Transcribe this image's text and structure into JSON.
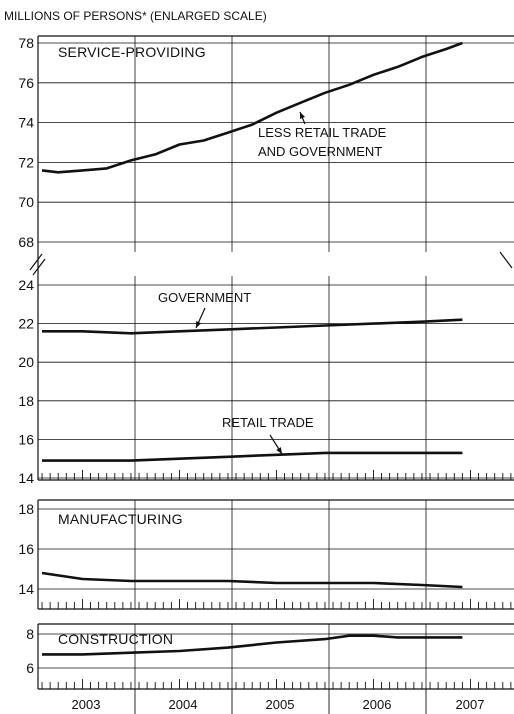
{
  "chart_data": {
    "type": "line",
    "unit_label": "MILLIONS OF PERSONS* (ENLARGED SCALE)",
    "x_years": [
      "2003",
      "2004",
      "2005",
      "2006",
      "2007"
    ],
    "x_range": [
      "2003-01",
      "2007-12"
    ],
    "x_end": "2007-01",
    "panels": [
      {
        "id": "service",
        "title": "SERVICE-PROVIDING",
        "yticks": [
          68,
          70,
          72,
          74,
          76,
          78
        ],
        "series": [
          {
            "name": "LESS RETAIL TRADE AND GOVERNMENT",
            "points": [
              [
                "2003-01",
                71.6
              ],
              [
                "2003-03",
                71.5
              ],
              [
                "2003-06",
                71.6
              ],
              [
                "2003-09",
                71.7
              ],
              [
                "2003-12",
                72.1
              ],
              [
                "2004-03",
                72.4
              ],
              [
                "2004-06",
                72.9
              ],
              [
                "2004-09",
                73.1
              ],
              [
                "2004-12",
                73.5
              ],
              [
                "2005-03",
                73.9
              ],
              [
                "2005-06",
                74.5
              ],
              [
                "2005-09",
                75.0
              ],
              [
                "2005-12",
                75.5
              ],
              [
                "2006-03",
                75.9
              ],
              [
                "2006-06",
                76.4
              ],
              [
                "2006-09",
                76.8
              ],
              [
                "2006-12",
                77.3
              ],
              [
                "2007-03",
                77.7
              ],
              [
                "2007-05",
                78.0
              ]
            ]
          }
        ]
      },
      {
        "id": "retail-gov",
        "yticks": [
          14,
          16,
          18,
          20,
          22,
          24
        ],
        "series": [
          {
            "name": "GOVERNMENT",
            "points": [
              [
                "2003-01",
                21.6
              ],
              [
                "2003-06",
                21.6
              ],
              [
                "2003-12",
                21.5
              ],
              [
                "2004-06",
                21.6
              ],
              [
                "2004-12",
                21.7
              ],
              [
                "2005-06",
                21.8
              ],
              [
                "2005-12",
                21.9
              ],
              [
                "2006-06",
                22.0
              ],
              [
                "2006-12",
                22.1
              ],
              [
                "2007-05",
                22.2
              ]
            ]
          },
          {
            "name": "RETAIL TRADE",
            "points": [
              [
                "2003-01",
                14.9
              ],
              [
                "2003-06",
                14.9
              ],
              [
                "2003-12",
                14.9
              ],
              [
                "2004-06",
                15.0
              ],
              [
                "2004-12",
                15.1
              ],
              [
                "2005-06",
                15.2
              ],
              [
                "2005-12",
                15.3
              ],
              [
                "2006-06",
                15.3
              ],
              [
                "2006-12",
                15.3
              ],
              [
                "2007-05",
                15.3
              ]
            ]
          }
        ]
      },
      {
        "id": "manufacturing",
        "title": "MANUFACTURING",
        "yticks": [
          14,
          16,
          18
        ],
        "series": [
          {
            "name": "MANUFACTURING",
            "points": [
              [
                "2003-01",
                14.8
              ],
              [
                "2003-06",
                14.5
              ],
              [
                "2003-12",
                14.4
              ],
              [
                "2004-06",
                14.4
              ],
              [
                "2004-12",
                14.4
              ],
              [
                "2005-06",
                14.3
              ],
              [
                "2005-12",
                14.3
              ],
              [
                "2006-06",
                14.3
              ],
              [
                "2006-12",
                14.2
              ],
              [
                "2007-05",
                14.1
              ]
            ]
          }
        ]
      },
      {
        "id": "construction",
        "title": "CONSTRUCTION",
        "yticks": [
          6,
          8
        ],
        "series": [
          {
            "name": "CONSTRUCTION",
            "points": [
              [
                "2003-01",
                6.8
              ],
              [
                "2003-06",
                6.8
              ],
              [
                "2003-12",
                6.9
              ],
              [
                "2004-06",
                7.0
              ],
              [
                "2004-12",
                7.2
              ],
              [
                "2005-06",
                7.5
              ],
              [
                "2005-12",
                7.7
              ],
              [
                "2006-03",
                7.9
              ],
              [
                "2006-06",
                7.9
              ],
              [
                "2006-09",
                7.8
              ],
              [
                "2006-12",
                7.8
              ],
              [
                "2007-05",
                7.8
              ]
            ]
          }
        ]
      }
    ],
    "annotations": [
      {
        "panel": "service",
        "lines": [
          "LESS RETAIL TRADE",
          "AND GOVERNMENT"
        ]
      },
      {
        "panel": "retail-gov",
        "lines": [
          "GOVERNMENT"
        ]
      },
      {
        "panel": "retail-gov",
        "lines": [
          "RETAIL TRADE"
        ]
      }
    ],
    "grid": true,
    "line_color": "#111111"
  }
}
